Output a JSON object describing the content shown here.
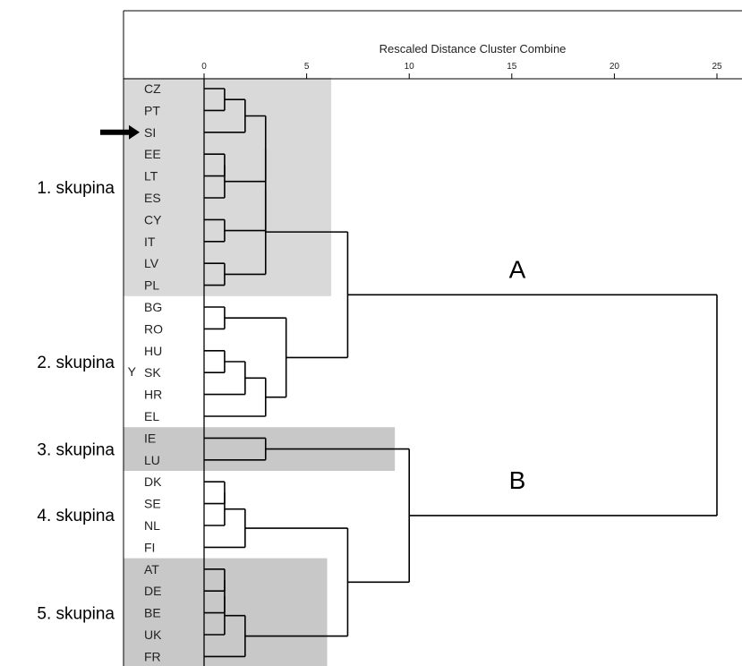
{
  "chart_data": {
    "type": "dendrogram",
    "title": "Rescaled Distance Cluster Combine",
    "x_ticks": [
      0,
      5,
      10,
      15,
      20,
      25
    ],
    "xlim": [
      0,
      25
    ],
    "leaves": [
      "CZ",
      "PT",
      "SI",
      "EE",
      "LT",
      "ES",
      "CY",
      "IT",
      "LV",
      "PL",
      "BG",
      "RO",
      "HU",
      "SK",
      "HR",
      "EL",
      "IE",
      "LU",
      "DK",
      "SE",
      "NL",
      "FI",
      "AT",
      "DE",
      "BE",
      "UK",
      "FR"
    ],
    "highlighted_leaf": "SI",
    "merges": [
      {
        "a": "CZ",
        "b": "PT",
        "distance": 1,
        "id": "m1"
      },
      {
        "a": "EE",
        "b": "LT",
        "distance": 1,
        "id": "m2"
      },
      {
        "a": "m2",
        "b": "ES",
        "distance": 1,
        "id": "m3"
      },
      {
        "a": "CY",
        "b": "IT",
        "distance": 1,
        "id": "m4"
      },
      {
        "a": "LV",
        "b": "PL",
        "distance": 1,
        "id": "m5"
      },
      {
        "a": "m1",
        "b": "SI",
        "distance": 2,
        "id": "m6"
      },
      {
        "a": "m6",
        "b": "m3",
        "distance": 3,
        "id": "m7"
      },
      {
        "a": "m7",
        "b": "m4",
        "distance": 3,
        "id": "m8"
      },
      {
        "a": "m8",
        "b": "m5",
        "distance": 3,
        "id": "m9"
      },
      {
        "a": "BG",
        "b": "RO",
        "distance": 1,
        "id": "m10"
      },
      {
        "a": "HU",
        "b": "SK",
        "distance": 1,
        "id": "m11"
      },
      {
        "a": "m11",
        "b": "HR",
        "distance": 2,
        "id": "m12"
      },
      {
        "a": "m12",
        "b": "EL",
        "distance": 3,
        "id": "m13"
      },
      {
        "a": "m10",
        "b": "m13",
        "distance": 4,
        "id": "m14"
      },
      {
        "a": "m9",
        "b": "m14",
        "distance": 7,
        "id": "m15"
      },
      {
        "a": "IE",
        "b": "LU",
        "distance": 3,
        "id": "m16"
      },
      {
        "a": "DK",
        "b": "SE",
        "distance": 1,
        "id": "m17"
      },
      {
        "a": "m17",
        "b": "NL",
        "distance": 1,
        "id": "m18"
      },
      {
        "a": "m18",
        "b": "FI",
        "distance": 2,
        "id": "m19"
      },
      {
        "a": "AT",
        "b": "DE",
        "distance": 1,
        "id": "m20"
      },
      {
        "a": "m20",
        "b": "BE",
        "distance": 1,
        "id": "m21"
      },
      {
        "a": "m21",
        "b": "UK",
        "distance": 1,
        "id": "m22"
      },
      {
        "a": "m22",
        "b": "FR",
        "distance": 2,
        "id": "m23"
      },
      {
        "a": "m19",
        "b": "m23",
        "distance": 7,
        "id": "m24"
      },
      {
        "a": "m16",
        "b": "m24",
        "distance": 10,
        "id": "m25"
      },
      {
        "a": "m15",
        "b": "m25",
        "distance": 25,
        "id": "m26"
      }
    ],
    "groups": [
      {
        "label": "1. skupina",
        "first": 0,
        "last": 9,
        "shade": "#d9d9d9",
        "shade_extent": 6.2
      },
      {
        "label": "2. skupina",
        "first": 10,
        "last": 15,
        "shade": null
      },
      {
        "label": "3. skupina",
        "first": 16,
        "last": 17,
        "shade": "#c8c8c8",
        "shade_extent": 9.3
      },
      {
        "label": "4. skupina",
        "first": 18,
        "last": 21,
        "shade": null
      },
      {
        "label": "5. skupina",
        "first": 22,
        "last": 26,
        "shade": "#c8c8c8",
        "shade_extent": 6.0
      }
    ],
    "cluster_labels": [
      {
        "text": "A",
        "cluster": "m15"
      },
      {
        "text": "B",
        "cluster": "m25"
      }
    ],
    "sk_marker": "Y"
  }
}
